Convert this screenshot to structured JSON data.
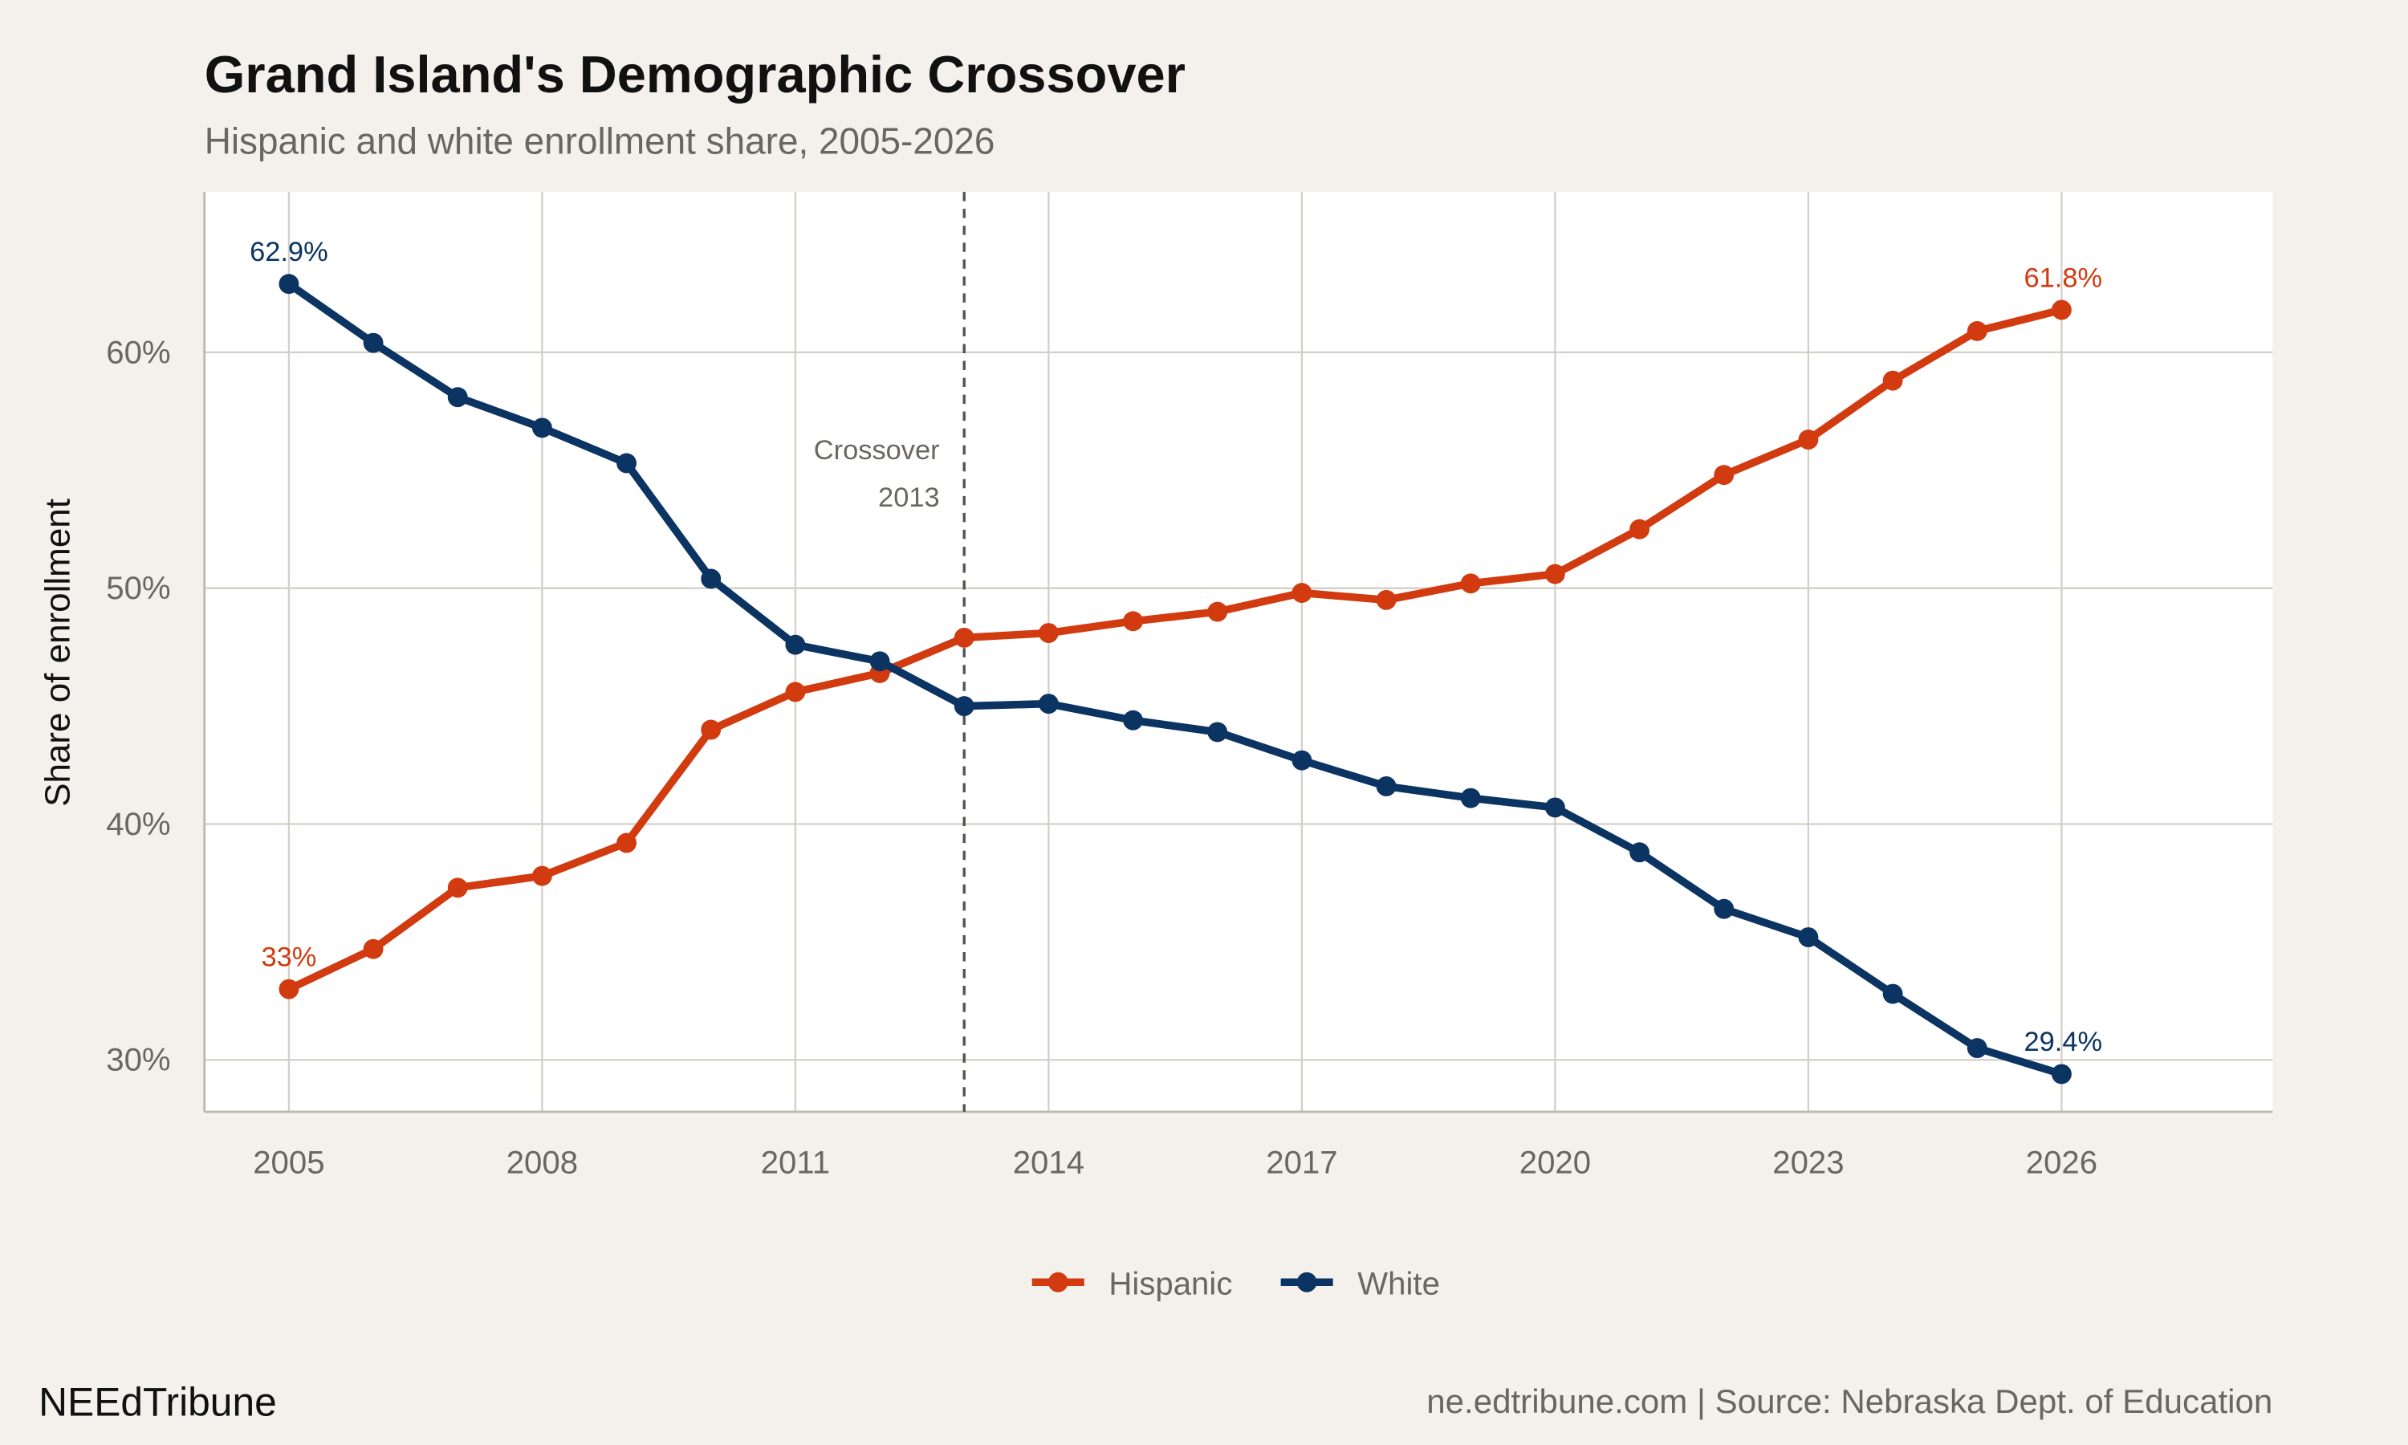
{
  "chart_data": {
    "type": "line",
    "title": "Grand Island's Demographic Crossover",
    "subtitle": "Hispanic and white enrollment share, 2005-2026",
    "xlabel": "",
    "ylabel": "Share of enrollment",
    "x": [
      2005,
      2006,
      2007,
      2008,
      2009,
      2010,
      2011,
      2012,
      2013,
      2014,
      2015,
      2016,
      2017,
      2018,
      2019,
      2020,
      2021,
      2022,
      2023,
      2024,
      2025,
      2026
    ],
    "xticks": [
      2005,
      2008,
      2011,
      2014,
      2017,
      2020,
      2023,
      2026
    ],
    "xtick_labels": [
      "2005",
      "2008",
      "2011",
      "2014",
      "2017",
      "2020",
      "2023",
      "2026"
    ],
    "yticks": [
      30,
      40,
      50,
      60
    ],
    "ytick_labels": [
      "30%",
      "40%",
      "50%",
      "60%"
    ],
    "xlim": [
      2004,
      2028.5
    ],
    "ylim": [
      27.8,
      66.8
    ],
    "grid": true,
    "legend_position": "bottom",
    "series": [
      {
        "name": "Hispanic",
        "color": "#d13b0f",
        "values": [
          33.0,
          34.7,
          37.3,
          37.8,
          39.2,
          44.0,
          45.6,
          46.4,
          47.9,
          48.1,
          48.6,
          49.0,
          49.8,
          49.5,
          50.2,
          50.6,
          52.5,
          54.8,
          56.3,
          58.8,
          60.9,
          61.8
        ],
        "start_label": "33%",
        "end_label": "61.8%"
      },
      {
        "name": "White",
        "color": "#0b3463",
        "values": [
          62.9,
          60.4,
          58.1,
          56.8,
          55.3,
          50.4,
          47.6,
          46.9,
          45.0,
          45.1,
          44.4,
          43.9,
          42.7,
          41.6,
          41.1,
          40.7,
          38.8,
          36.4,
          35.2,
          32.8,
          30.5,
          29.4
        ],
        "start_label": "62.9%",
        "end_label": "29.4%"
      }
    ],
    "annotation": {
      "x": 2013,
      "line1": "Crossover",
      "line2": "2013",
      "style": "dashed"
    }
  },
  "footer": {
    "brand": "NEEdTribune",
    "source": "ne.edtribune.com | Source: Nebraska Dept. of Education"
  },
  "colors": {
    "background": "#f4f1ec",
    "panel": "#ffffff",
    "grid": "#d3cfc8"
  }
}
